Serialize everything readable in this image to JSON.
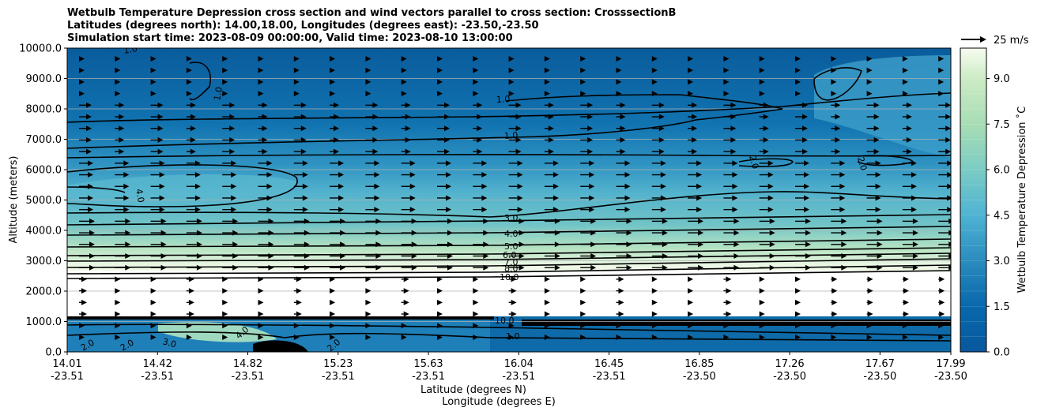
{
  "chart_data": {
    "type": "contour",
    "title_lines": [
      "Wetbulb Temperature Depression cross section and wind vectors parallel to cross section: CrosssectionB",
      "Latitudes (degrees north): 14.00,18.00, Longitudes (degrees east): -23.50,-23.50",
      "Simulation start time: 2023-08-09 00:00:00, Valid time: 2023-08-10 13:00:00"
    ],
    "ylabel": "Altitude (meters)",
    "xlabel_line1": "Latitude (degrees N)",
    "xlabel_line2": "Longitude (degrees E)",
    "ylim": [
      0,
      10000
    ],
    "y_ticks": [
      "0.0",
      "1000.0",
      "2000.0",
      "3000.0",
      "4000.0",
      "5000.0",
      "6000.0",
      "7000.0",
      "8000.0",
      "9000.0",
      "10000.0"
    ],
    "x_ticks_lat": [
      "14.01",
      "14.42",
      "14.82",
      "15.23",
      "15.63",
      "16.04",
      "16.45",
      "16.85",
      "17.26",
      "17.67",
      "17.99"
    ],
    "x_ticks_lon": [
      "-23.51",
      "-23.51",
      "-23.51",
      "-23.51",
      "-23.51",
      "-23.51",
      "-23.51",
      "-23.50",
      "-23.50",
      "-23.50",
      "-23.50"
    ],
    "grid": "horizontal",
    "colorbar": {
      "label": "Wetbulb Temperature Depression ˚C",
      "ticks": [
        "0.0",
        "1.5",
        "3.0",
        "4.5",
        "6.0",
        "7.5",
        "9.0"
      ],
      "range": [
        0,
        10
      ]
    },
    "quiver_key": {
      "label": "25 m/s",
      "placement": "top-right"
    },
    "contour_levels": [
      "1.0",
      "2.0",
      "3.0",
      "4.0",
      "5.0",
      "6.0",
      "7.0",
      "8.0",
      "10.0"
    ],
    "profile": [
      {
        "altitude": 0,
        "value": 1.5
      },
      {
        "altitude": 500,
        "value": 2.5
      },
      {
        "altitude": 1100,
        "value": 10
      },
      {
        "altitude": 2500,
        "value": 10
      },
      {
        "altitude": 3000,
        "value": 7
      },
      {
        "altitude": 3500,
        "value": 5
      },
      {
        "altitude": 4000,
        "value": 4
      },
      {
        "altitude": 5000,
        "value": 4
      },
      {
        "altitude": 6000,
        "value": 2
      },
      {
        "altitude": 7000,
        "value": 1
      },
      {
        "altitude": 8000,
        "value": 1
      },
      {
        "altitude": 10000,
        "value": 0.8
      }
    ]
  }
}
